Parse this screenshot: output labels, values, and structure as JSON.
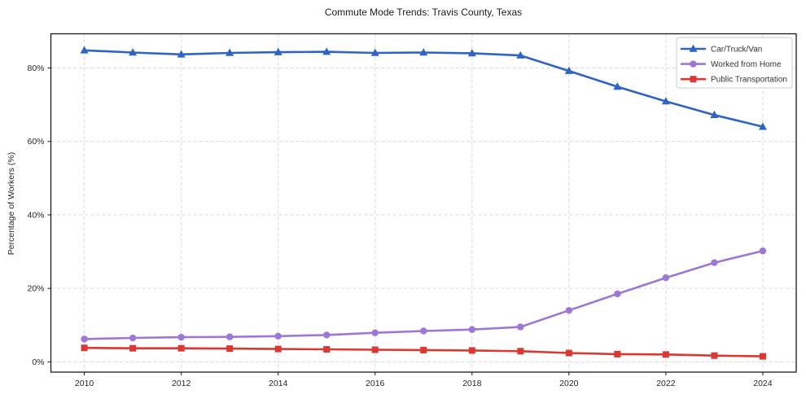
{
  "title": "Commute Mode Trends: Travis County, Texas",
  "chart_data": {
    "type": "line",
    "title": "Commute Mode Trends: Travis County, Texas",
    "xlabel": "",
    "ylabel": "Percentage of Workers (%)",
    "x": [
      2010,
      2011,
      2012,
      2013,
      2014,
      2015,
      2016,
      2017,
      2018,
      2019,
      2020,
      2021,
      2022,
      2023,
      2024
    ],
    "series": [
      {
        "name": "Car/Truck/Van",
        "marker": "triangle",
        "color": "#2d64c6",
        "values": [
          84.8,
          84.2,
          83.7,
          84.1,
          84.3,
          84.4,
          84.1,
          84.2,
          84.0,
          83.4,
          79.2,
          74.9,
          70.9,
          67.2,
          64.0
        ]
      },
      {
        "name": "Worked from Home",
        "marker": "circle",
        "color": "#9e77d6",
        "values": [
          6.2,
          6.5,
          6.7,
          6.8,
          7.0,
          7.3,
          7.9,
          8.4,
          8.8,
          9.5,
          14.0,
          18.5,
          22.9,
          27.0,
          30.2
        ]
      },
      {
        "name": "Public Transportation",
        "marker": "square",
        "color": "#db3832",
        "values": [
          3.8,
          3.7,
          3.7,
          3.6,
          3.5,
          3.4,
          3.3,
          3.2,
          3.1,
          2.9,
          2.4,
          2.1,
          2.0,
          1.7,
          1.5
        ]
      }
    ],
    "x_ticks": [
      2010,
      2012,
      2014,
      2016,
      2018,
      2020,
      2022,
      2024
    ],
    "y_ticks": [
      {
        "value": 0,
        "label": "0%"
      },
      {
        "value": 20,
        "label": "20%"
      },
      {
        "value": 40,
        "label": "40%"
      },
      {
        "value": 60,
        "label": "60%"
      },
      {
        "value": 80,
        "label": "80%"
      }
    ],
    "xlim": [
      2009.31,
      2024.69
    ],
    "ylim": [
      -2.8,
      89.3
    ],
    "grid": true,
    "grid_style": "dashed",
    "legend_position": "upper right"
  },
  "style": {
    "grid_color": "#d9d9d9",
    "spine_color": "#1a1a1a",
    "tick_text_color": "#262626",
    "legend_border_color": "#cccccc",
    "legend_bg_color": "#ffffff",
    "background_color": "#ffffff"
  }
}
